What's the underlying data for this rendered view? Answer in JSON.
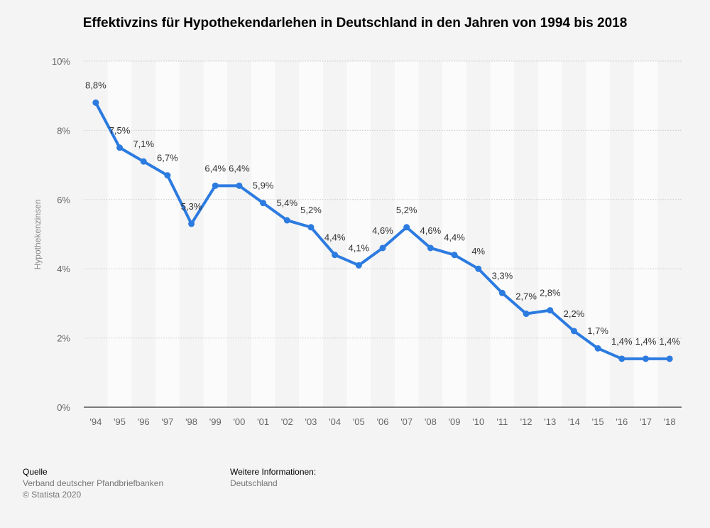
{
  "chart_data": {
    "type": "line",
    "title": "Effektivzins für Hypothekendarlehen in Deutschland in den Jahren von 1994 bis 2018",
    "ylabel": "Hypothekenzinsen",
    "xlabel": "",
    "categories": [
      "'94",
      "'95",
      "'96",
      "'97",
      "'98",
      "'99",
      "'00",
      "'01",
      "'02",
      "'03",
      "'04",
      "'05",
      "'06",
      "'07",
      "'08",
      "'09",
      "'10",
      "'11",
      "'12",
      "'13",
      "'14",
      "'15",
      "'16",
      "'17",
      "'18"
    ],
    "values": [
      8.8,
      7.5,
      7.1,
      6.7,
      5.3,
      6.4,
      6.4,
      5.9,
      5.4,
      5.2,
      4.4,
      4.1,
      4.6,
      5.2,
      4.6,
      4.4,
      4.0,
      3.3,
      2.7,
      2.8,
      2.2,
      1.7,
      1.4,
      1.4,
      1.4
    ],
    "data_labels": [
      "8,8%",
      "7,5%",
      "7,1%",
      "6,7%",
      "5,3%",
      "6,4%",
      "6,4%",
      "5,9%",
      "5,4%",
      "5,2%",
      "4,4%",
      "4,1%",
      "4,6%",
      "5,2%",
      "4,6%",
      "4,4%",
      "4%",
      "3,3%",
      "2,7%",
      "2,8%",
      "2,2%",
      "1,7%",
      "1,4%",
      "1,4%",
      "1,4%"
    ],
    "yticks": [
      0,
      2,
      4,
      6,
      8,
      10
    ],
    "ytick_labels": [
      "0%",
      "2%",
      "4%",
      "6%",
      "8%",
      "10%"
    ],
    "ylim": [
      0,
      10
    ],
    "grid": true,
    "line_color": "#2c7be0"
  },
  "footer": {
    "source_heading": "Quelle",
    "source_text": "Verband deutscher Pfandbriefbanken",
    "copyright": "© Statista 2020",
    "info_heading": "Weitere Informationen:",
    "info_text": "Deutschland"
  }
}
